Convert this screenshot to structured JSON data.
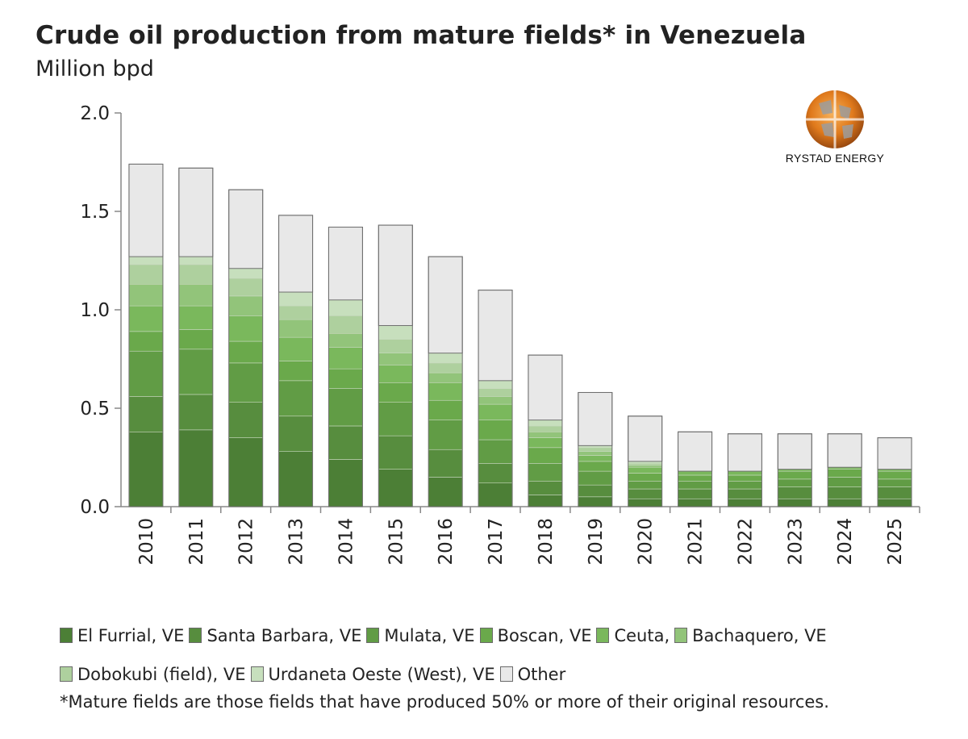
{
  "title": "Crude oil production from mature fields* in Venezuela",
  "subtitle": "Million bpd",
  "logo": {
    "text": "RYSTAD ENERGY"
  },
  "legend": {
    "items": [
      {
        "label": "El Furrial, VE",
        "color": "#4c7f36"
      },
      {
        "label": "Santa Barbara, VE",
        "color": "#578d3e"
      },
      {
        "label": "Mulata, VE",
        "color": "#619c45"
      },
      {
        "label": "Boscan, VE",
        "color": "#6aa94b"
      },
      {
        "label": "Ceuta,",
        "color": "#7ab85c"
      },
      {
        "label": "Bachaquero, VE",
        "color": "#92c47a"
      },
      {
        "label": "Dobokubi (field), VE",
        "color": "#aed09e"
      },
      {
        "label": "Urdaneta Oeste (West), VE",
        "color": "#c7dfbd"
      },
      {
        "label": "Other",
        "color": "#e8e8e8"
      }
    ]
  },
  "footnote": "*Mature fields are those fields that have produced 50% or more of their original resources.",
  "chart_data": {
    "type": "bar",
    "stacked": true,
    "title": "Crude oil production from mature fields* in Venezuela",
    "ylabel": "Million bpd",
    "ylim": [
      0,
      2.0
    ],
    "yticks": [
      "0.0",
      "0.5",
      "1.0",
      "1.5",
      "2.0"
    ],
    "categories": [
      "2010",
      "2011",
      "2012",
      "2013",
      "2014",
      "2015",
      "2016",
      "2017",
      "2018",
      "2019",
      "2020",
      "2021",
      "2022",
      "2023",
      "2024",
      "2025"
    ],
    "series": [
      {
        "name": "El Furrial, VE",
        "color": "#4c7f36",
        "values": [
          0.38,
          0.39,
          0.35,
          0.28,
          0.24,
          0.19,
          0.15,
          0.12,
          0.06,
          0.05,
          0.04,
          0.04,
          0.04,
          0.04,
          0.04,
          0.04
        ]
      },
      {
        "name": "Santa Barbara, VE",
        "color": "#578d3e",
        "values": [
          0.18,
          0.18,
          0.18,
          0.18,
          0.17,
          0.17,
          0.14,
          0.1,
          0.07,
          0.06,
          0.05,
          0.05,
          0.05,
          0.06,
          0.06,
          0.06
        ]
      },
      {
        "name": "Mulata, VE",
        "color": "#619c45",
        "values": [
          0.23,
          0.23,
          0.2,
          0.18,
          0.19,
          0.17,
          0.15,
          0.12,
          0.09,
          0.07,
          0.04,
          0.04,
          0.04,
          0.04,
          0.05,
          0.04
        ]
      },
      {
        "name": "Boscan, VE",
        "color": "#6aa94b",
        "values": [
          0.1,
          0.1,
          0.11,
          0.1,
          0.1,
          0.1,
          0.1,
          0.1,
          0.08,
          0.05,
          0.04,
          0.03,
          0.03,
          0.04,
          0.04,
          0.04
        ]
      },
      {
        "name": "Ceuta,",
        "color": "#7ab85c",
        "values": [
          0.13,
          0.12,
          0.13,
          0.12,
          0.11,
          0.09,
          0.09,
          0.08,
          0.05,
          0.03,
          0.03,
          0.02,
          0.02,
          0.01,
          0.01,
          0.01
        ]
      },
      {
        "name": "Bachaquero, VE",
        "color": "#92c47a",
        "values": [
          0.11,
          0.11,
          0.1,
          0.09,
          0.07,
          0.06,
          0.05,
          0.04,
          0.03,
          0.02,
          0.01,
          0.0,
          0.0,
          0.0,
          0.0,
          0.0
        ]
      },
      {
        "name": "Dobokubi (field), VE",
        "color": "#aed09e",
        "values": [
          0.1,
          0.1,
          0.09,
          0.07,
          0.09,
          0.07,
          0.05,
          0.04,
          0.03,
          0.02,
          0.01,
          0.0,
          0.0,
          0.0,
          0.0,
          0.0
        ]
      },
      {
        "name": "Urdaneta Oeste (West), VE",
        "color": "#c7dfbd",
        "values": [
          0.04,
          0.04,
          0.05,
          0.07,
          0.08,
          0.07,
          0.05,
          0.04,
          0.03,
          0.01,
          0.01,
          0.0,
          0.0,
          0.0,
          0.0,
          0.0
        ]
      },
      {
        "name": "Other",
        "color": "#e8e8e8",
        "values": [
          0.47,
          0.45,
          0.4,
          0.39,
          0.37,
          0.51,
          0.49,
          0.46,
          0.33,
          0.27,
          0.23,
          0.2,
          0.19,
          0.18,
          0.17,
          0.16
        ]
      }
    ],
    "grid": false,
    "legend_position": "bottom"
  }
}
